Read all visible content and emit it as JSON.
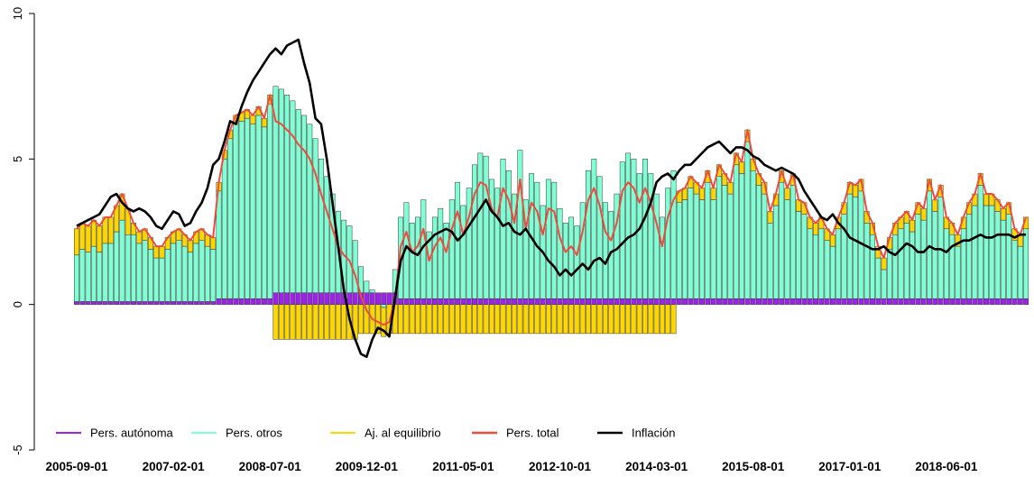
{
  "chart_data": {
    "type": "bar",
    "categories": [
      "2005-09-01",
      null,
      null,
      null,
      null,
      null,
      null,
      null,
      null,
      null,
      null,
      null,
      null,
      null,
      null,
      null,
      null,
      "2007-02-01",
      null,
      null,
      null,
      null,
      null,
      null,
      null,
      null,
      null,
      null,
      null,
      null,
      null,
      null,
      null,
      null,
      "2008-07-01",
      null,
      null,
      null,
      null,
      null,
      null,
      null,
      null,
      null,
      null,
      null,
      null,
      null,
      null,
      null,
      null,
      "2009-12-01",
      null,
      null,
      null,
      null,
      null,
      null,
      null,
      null,
      null,
      null,
      null,
      null,
      null,
      null,
      null,
      null,
      "2011-05-01",
      null,
      null,
      null,
      null,
      null,
      null,
      null,
      null,
      null,
      null,
      null,
      null,
      null,
      null,
      null,
      null,
      "2012-10-01",
      null,
      null,
      null,
      null,
      null,
      null,
      null,
      null,
      null,
      null,
      null,
      null,
      null,
      null,
      null,
      null,
      "2014-03-01",
      null,
      null,
      null,
      null,
      null,
      null,
      null,
      null,
      null,
      null,
      null,
      null,
      null,
      null,
      null,
      null,
      "2015-08-01",
      null,
      null,
      null,
      null,
      null,
      null,
      null,
      null,
      null,
      null,
      null,
      null,
      null,
      null,
      null,
      null,
      "2017-01-01",
      null,
      null,
      null,
      null,
      null,
      null,
      null,
      null,
      null,
      null,
      null,
      null,
      null,
      null,
      null,
      null,
      "2018-06-01",
      null,
      null,
      null,
      null,
      null,
      null,
      null,
      null,
      null,
      null,
      null,
      null,
      null,
      null
    ],
    "ylim": [
      -5,
      10
    ],
    "yticks": [
      -5,
      0,
      5,
      10
    ],
    "series": [
      {
        "name": "Pers. autónoma",
        "color": "#a020f0",
        "type": "bar",
        "values": [
          0.1,
          0.1,
          0.1,
          0.1,
          0.1,
          0.1,
          0.1,
          0.1,
          0.1,
          0.1,
          0.1,
          0.1,
          0.1,
          0.1,
          0.1,
          0.1,
          0.1,
          0.1,
          0.1,
          0.1,
          0.1,
          0.1,
          0.1,
          0.1,
          0.1,
          0.2,
          0.2,
          0.2,
          0.2,
          0.2,
          0.2,
          0.2,
          0.2,
          0.2,
          0.2,
          0.4,
          0.4,
          0.4,
          0.4,
          0.4,
          0.4,
          0.4,
          0.4,
          0.4,
          0.4,
          0.4,
          0.4,
          0.4,
          0.4,
          0.4,
          0.4,
          0.4,
          0.4,
          0.4,
          0.4,
          0.4,
          0.4,
          0.2,
          0.2,
          0.2,
          0.2,
          0.2,
          0.2,
          0.2,
          0.2,
          0.2,
          0.2,
          0.2,
          0.2,
          0.2,
          0.2,
          0.2,
          0.2,
          0.2,
          0.2,
          0.2,
          0.2,
          0.2,
          0.2,
          0.2,
          0.2,
          0.2,
          0.2,
          0.2,
          0.2,
          0.2,
          0.2,
          0.2,
          0.2,
          0.2,
          0.2,
          0.2,
          0.2,
          0.2,
          0.2,
          0.2,
          0.2,
          0.2,
          0.2,
          0.2,
          0.2,
          0.2,
          0.2,
          0.2,
          0.2,
          0.2,
          0.2,
          0.2,
          0.2,
          0.2,
          0.2,
          0.2,
          0.2,
          0.2,
          0.2,
          0.2,
          0.2,
          0.2,
          0.2,
          0.2,
          0.2,
          0.2,
          0.2,
          0.2,
          0.2,
          0.2,
          0.2,
          0.2,
          0.2,
          0.2,
          0.2,
          0.2,
          0.2,
          0.2,
          0.2,
          0.2,
          0.2,
          0.2,
          0.2,
          0.2,
          0.2,
          0.2,
          0.2,
          0.2,
          0.2,
          0.2,
          0.2,
          0.2,
          0.2,
          0.2,
          0.2,
          0.2,
          0.2,
          0.2,
          0.2,
          0.2,
          0.2,
          0.2,
          0.2,
          0.2,
          0.2,
          0.2,
          0.2,
          0.2,
          0.2,
          0.2,
          0.2,
          0.2
        ]
      },
      {
        "name": "Pers. otros",
        "color": "#7fffd4",
        "type": "bar",
        "values": [
          1.6,
          1.8,
          1.7,
          1.9,
          1.7,
          2.0,
          2.0,
          2.4,
          2.8,
          2.3,
          2.3,
          2.0,
          2.1,
          1.8,
          1.5,
          1.5,
          1.8,
          2.0,
          2.1,
          1.9,
          1.7,
          2.0,
          2.1,
          1.9,
          1.8,
          3.7,
          4.8,
          5.5,
          6.0,
          6.1,
          6.2,
          6.0,
          6.3,
          5.9,
          6.7,
          7.1,
          7.0,
          6.8,
          6.6,
          6.3,
          6.1,
          5.8,
          5.3,
          4.6,
          4.0,
          3.4,
          2.8,
          2.5,
          2.3,
          1.8,
          0.9,
          0.4,
          0.1,
          0.0,
          -0.1,
          0.0,
          0.8,
          2.8,
          3.3,
          2.6,
          2.8,
          3.4,
          2.3,
          2.8,
          3.1,
          2.6,
          3.4,
          4.0,
          3.2,
          3.8,
          4.6,
          5.0,
          4.9,
          4.1,
          3.8,
          4.8,
          4.4,
          3.6,
          5.1,
          3.4,
          4.3,
          4.0,
          3.2,
          4.1,
          4.0,
          3.1,
          2.6,
          2.8,
          2.5,
          3.3,
          4.4,
          4.8,
          4.2,
          3.3,
          3.0,
          3.6,
          4.7,
          5.0,
          4.8,
          4.3,
          4.8,
          4.3,
          3.6,
          2.8,
          3.8,
          4.4,
          3.3,
          3.4,
          3.8,
          3.6,
          3.4,
          4.0,
          3.4,
          4.2,
          3.9,
          3.6,
          4.6,
          4.3,
          5.4,
          4.4,
          3.9,
          3.6,
          2.6,
          3.2,
          4.0,
          3.4,
          3.9,
          3.0,
          2.9,
          2.4,
          2.2,
          2.4,
          2.0,
          1.8,
          2.4,
          2.9,
          3.6,
          3.5,
          3.7,
          2.6,
          2.2,
          1.4,
          1.0,
          1.7,
          2.2,
          2.4,
          2.6,
          2.3,
          2.9,
          2.7,
          3.7,
          3.0,
          3.5,
          2.4,
          2.2,
          1.8,
          2.4,
          2.9,
          3.2,
          3.9,
          3.2,
          3.2,
          3.0,
          2.7,
          2.9,
          2.0,
          1.8,
          2.4
        ]
      },
      {
        "name": "Aj. al equilibrio",
        "color": "#ffd700",
        "type": "bar",
        "values": [
          0.9,
          0.9,
          0.9,
          0.9,
          0.9,
          0.9,
          0.9,
          0.9,
          0.9,
          0.9,
          0.4,
          0.4,
          0.4,
          0.4,
          0.4,
          0.4,
          0.4,
          0.4,
          0.4,
          0.4,
          0.4,
          0.4,
          0.4,
          0.4,
          0.4,
          0.3,
          0.3,
          0.3,
          0.3,
          0.3,
          0.3,
          0.3,
          0.3,
          0.3,
          0.3,
          -1.2,
          -1.2,
          -1.2,
          -1.2,
          -1.2,
          -1.2,
          -1.2,
          -1.2,
          -1.2,
          -1.2,
          -1.2,
          -1.2,
          -1.2,
          -1.2,
          -1.2,
          -1.0,
          -1.0,
          -1.0,
          -1.0,
          -1.0,
          -1.0,
          -1.0,
          -1.0,
          -1.0,
          -1.0,
          -1.0,
          -1.0,
          -1.0,
          -1.0,
          -1.0,
          -1.0,
          -1.0,
          -1.0,
          -1.0,
          -1.0,
          -1.0,
          -1.0,
          -1.0,
          -1.0,
          -1.0,
          -1.0,
          -1.0,
          -1.0,
          -1.0,
          -1.0,
          -1.0,
          -1.0,
          -1.0,
          -1.0,
          -1.0,
          -1.0,
          -1.0,
          -1.0,
          -1.0,
          -1.0,
          -1.0,
          -1.0,
          -1.0,
          -1.0,
          -1.0,
          -1.0,
          -1.0,
          -1.0,
          -1.0,
          -1.0,
          -1.0,
          -1.0,
          -1.0,
          -1.0,
          -1.0,
          -1.0,
          0.4,
          0.4,
          0.4,
          0.4,
          0.4,
          0.4,
          0.4,
          0.4,
          0.4,
          0.4,
          0.4,
          0.4,
          0.4,
          0.4,
          0.4,
          0.4,
          0.4,
          0.4,
          0.4,
          0.4,
          0.4,
          0.4,
          0.4,
          0.4,
          0.4,
          0.4,
          0.4,
          0.4,
          0.4,
          0.4,
          0.4,
          0.4,
          0.4,
          0.4,
          0.4,
          0.4,
          0.4,
          0.4,
          0.4,
          0.4,
          0.4,
          0.4,
          0.4,
          0.4,
          0.4,
          0.4,
          0.4,
          0.4,
          0.4,
          0.4,
          0.4,
          0.4,
          0.4,
          0.4,
          0.4,
          0.4,
          0.4,
          0.4,
          0.4,
          0.4,
          0.4,
          0.4
        ]
      },
      {
        "name": "Pers. total",
        "color": "#ee4b3c",
        "type": "line",
        "values": [
          2.6,
          2.8,
          2.7,
          2.9,
          2.7,
          3.0,
          3.0,
          3.4,
          3.8,
          3.3,
          2.8,
          2.5,
          2.6,
          2.3,
          2.0,
          2.0,
          2.3,
          2.5,
          2.6,
          2.4,
          2.2,
          2.5,
          2.6,
          2.4,
          2.3,
          4.2,
          5.3,
          6.0,
          6.5,
          6.6,
          6.7,
          6.5,
          6.8,
          6.4,
          7.2,
          6.3,
          6.2,
          6.0,
          5.8,
          5.5,
          5.3,
          5.0,
          4.5,
          3.8,
          3.2,
          2.6,
          2.0,
          1.7,
          1.5,
          1.0,
          0.3,
          -0.2,
          -0.5,
          -0.6,
          -0.7,
          -0.6,
          0.2,
          2.0,
          2.5,
          1.8,
          2.0,
          2.6,
          1.5,
          2.0,
          2.3,
          1.8,
          2.6,
          3.2,
          2.4,
          3.0,
          3.8,
          4.2,
          4.1,
          3.3,
          3.0,
          4.0,
          3.6,
          2.8,
          4.3,
          2.6,
          3.5,
          3.2,
          2.4,
          3.3,
          3.2,
          2.3,
          1.8,
          2.0,
          1.7,
          2.5,
          3.6,
          4.0,
          3.4,
          2.5,
          2.2,
          2.8,
          3.9,
          4.2,
          4.0,
          3.5,
          4.0,
          3.5,
          2.8,
          2.0,
          3.0,
          3.6,
          3.9,
          4.0,
          4.4,
          4.2,
          4.0,
          4.6,
          4.0,
          4.8,
          4.5,
          4.2,
          5.2,
          4.9,
          6.0,
          5.0,
          4.5,
          4.2,
          3.2,
          3.8,
          4.6,
          4.0,
          4.5,
          3.6,
          3.5,
          3.0,
          2.8,
          3.0,
          2.6,
          2.4,
          3.0,
          3.5,
          4.2,
          4.1,
          4.3,
          3.2,
          2.8,
          2.0,
          1.6,
          2.3,
          2.8,
          3.0,
          3.2,
          2.9,
          3.5,
          3.3,
          4.3,
          3.6,
          4.1,
          3.0,
          2.8,
          2.4,
          3.0,
          3.5,
          3.8,
          4.5,
          3.8,
          3.8,
          3.6,
          3.3,
          3.5,
          2.6,
          2.4,
          3.0
        ]
      },
      {
        "name": "Inflación",
        "color": "#000000",
        "type": "line",
        "values": [
          2.7,
          2.8,
          2.9,
          3.0,
          3.1,
          3.4,
          3.7,
          3.8,
          3.5,
          3.3,
          3.2,
          3.3,
          3.2,
          3.0,
          2.7,
          2.6,
          2.9,
          3.2,
          3.1,
          2.7,
          2.8,
          3.2,
          3.5,
          4.0,
          4.8,
          5.0,
          5.6,
          6.3,
          6.2,
          6.8,
          7.3,
          7.7,
          8.0,
          8.3,
          8.6,
          8.8,
          8.6,
          8.9,
          9.0,
          9.1,
          8.3,
          7.6,
          6.4,
          6.2,
          5.0,
          3.5,
          2.0,
          0.5,
          -0.5,
          -1.2,
          -1.7,
          -1.8,
          -1.2,
          -0.8,
          -0.9,
          -1.1,
          0.2,
          1.5,
          2.0,
          1.8,
          1.7,
          2.0,
          2.2,
          2.4,
          2.5,
          2.6,
          2.5,
          2.2,
          2.4,
          2.7,
          3.0,
          3.3,
          3.6,
          3.2,
          3.0,
          2.7,
          2.8,
          2.5,
          2.4,
          2.6,
          2.3,
          2.0,
          1.8,
          1.5,
          1.3,
          1.0,
          1.2,
          1.0,
          1.2,
          1.4,
          1.2,
          1.5,
          1.6,
          1.4,
          1.8,
          1.9,
          2.1,
          2.3,
          2.4,
          2.6,
          3.0,
          3.5,
          4.2,
          4.4,
          4.5,
          4.3,
          4.6,
          4.8,
          4.8,
          5.0,
          5.2,
          5.4,
          5.5,
          5.6,
          5.4,
          5.2,
          5.4,
          5.4,
          5.3,
          5.1,
          5.0,
          4.8,
          4.7,
          4.6,
          4.7,
          4.6,
          4.5,
          4.3,
          3.9,
          3.6,
          3.3,
          3.0,
          2.9,
          3.1,
          2.8,
          2.6,
          2.3,
          2.2,
          2.1,
          2.0,
          1.9,
          1.9,
          2.0,
          1.8,
          1.7,
          1.9,
          2.1,
          2.0,
          1.8,
          1.8,
          2.0,
          1.9,
          1.9,
          1.8,
          2.0,
          2.1,
          2.2,
          2.2,
          2.3,
          2.4,
          2.3,
          2.3,
          2.4,
          2.4,
          2.4,
          2.3,
          2.4,
          2.4
        ]
      }
    ],
    "grid": false
  }
}
